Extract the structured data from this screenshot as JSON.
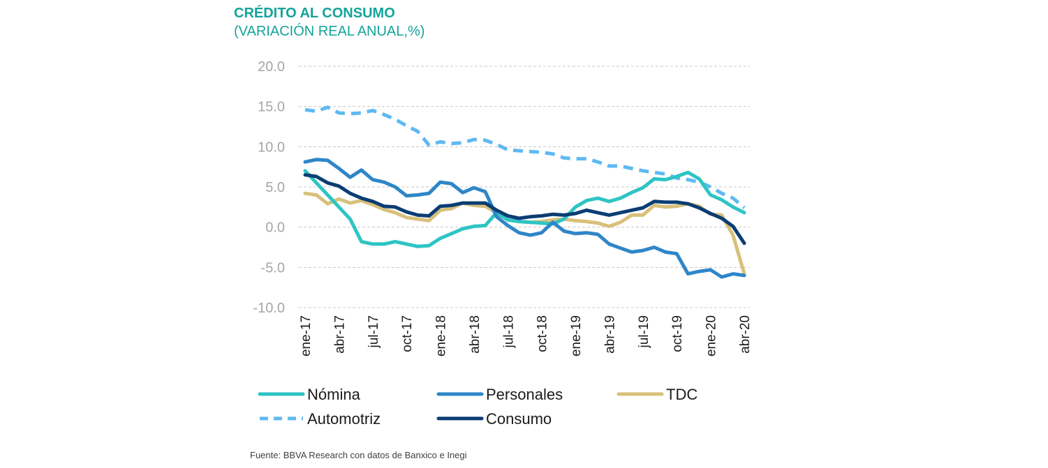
{
  "chart_data": {
    "type": "line",
    "title": "CRÉDITO AL CONSUMO",
    "subtitle": "(VARIACIÓN REAL ANUAL,%)",
    "source": "Fuente: BBVA Research con datos de Banxico e Inegi",
    "ylim": [
      -10,
      20
    ],
    "yticks": [
      20,
      15,
      10,
      5,
      0,
      -5,
      -10
    ],
    "ytick_labels": [
      "20.0",
      "15.0",
      "10.0",
      "5.0",
      "0.0",
      "-5.0",
      "-10.0"
    ],
    "grid": true,
    "legend_position": "bottom",
    "x": [
      "ene-17",
      "feb-17",
      "mar-17",
      "abr-17",
      "may-17",
      "jun-17",
      "jul-17",
      "ago-17",
      "sep-17",
      "oct-17",
      "nov-17",
      "dic-17",
      "ene-18",
      "feb-18",
      "mar-18",
      "abr-18",
      "may-18",
      "jun-18",
      "jul-18",
      "ago-18",
      "sep-18",
      "oct-18",
      "nov-18",
      "dic-18",
      "ene-19",
      "feb-19",
      "mar-19",
      "abr-19",
      "may-19",
      "jun-19",
      "jul-19",
      "ago-19",
      "sep-19",
      "oct-19",
      "nov-19",
      "dic-19",
      "ene-20",
      "feb-20",
      "mar-20",
      "abr-20"
    ],
    "xtick_labels": [
      {
        "index": 0,
        "label": "ene-17"
      },
      {
        "index": 3,
        "label": "abr-17"
      },
      {
        "index": 6,
        "label": "jul-17"
      },
      {
        "index": 9,
        "label": "oct-17"
      },
      {
        "index": 12,
        "label": "ene-18"
      },
      {
        "index": 15,
        "label": "abr-18"
      },
      {
        "index": 18,
        "label": "jul-18"
      },
      {
        "index": 21,
        "label": "oct-18"
      },
      {
        "index": 24,
        "label": "ene-19"
      },
      {
        "index": 27,
        "label": "abr-19"
      },
      {
        "index": 30,
        "label": "jul-19"
      },
      {
        "index": 33,
        "label": "oct-19"
      },
      {
        "index": 36,
        "label": "ene-20"
      },
      {
        "index": 39,
        "label": "abr-20"
      }
    ],
    "series": [
      {
        "name": "Nómina",
        "color": "#2ec4c4",
        "dashed": false,
        "values": [
          7.0,
          5.5,
          4.0,
          2.5,
          1.0,
          -1.8,
          -2.1,
          -2.1,
          -1.8,
          -2.1,
          -2.4,
          -2.3,
          -1.4,
          -0.8,
          -0.2,
          0.1,
          0.2,
          1.8,
          0.9,
          0.7,
          0.6,
          0.5,
          0.4,
          1.0,
          2.5,
          3.3,
          3.6,
          3.2,
          3.6,
          4.3,
          4.9,
          6.0,
          5.9,
          6.3,
          6.8,
          6.0,
          4.0,
          3.4,
          2.5,
          1.8
        ]
      },
      {
        "name": "Personales",
        "color": "#2e86c8",
        "dashed": false,
        "values": [
          8.1,
          8.4,
          8.3,
          7.3,
          6.2,
          7.1,
          5.9,
          5.6,
          5.0,
          3.9,
          4.0,
          4.2,
          5.6,
          5.4,
          4.3,
          4.9,
          4.4,
          1.3,
          0.2,
          -0.7,
          -1.0,
          -0.7,
          0.6,
          -0.5,
          -0.8,
          -0.7,
          -0.9,
          -2.1,
          -2.6,
          -3.1,
          -2.9,
          -2.5,
          -3.1,
          -3.3,
          -5.8,
          -5.5,
          -5.3,
          -6.2,
          -5.8,
          -6.0
        ]
      },
      {
        "name": "TDC",
        "color": "#d8c07a",
        "dashed": false,
        "values": [
          4.2,
          4.0,
          2.9,
          3.5,
          3.0,
          3.3,
          2.8,
          2.2,
          1.8,
          1.2,
          1.0,
          0.8,
          2.1,
          2.3,
          3.0,
          2.7,
          2.6,
          1.8,
          0.9,
          0.7,
          0.6,
          0.7,
          0.9,
          1.0,
          0.8,
          0.7,
          0.5,
          0.1,
          0.6,
          1.5,
          1.5,
          2.7,
          2.5,
          2.6,
          2.9,
          2.6,
          1.6,
          1.5,
          -1.0,
          -5.8
        ]
      },
      {
        "name": "Automotriz",
        "color": "#5fb9f2",
        "dashed": true,
        "values": [
          14.6,
          14.4,
          14.9,
          14.2,
          14.1,
          14.2,
          14.5,
          14.0,
          13.4,
          12.6,
          11.9,
          10.2,
          10.6,
          10.4,
          10.5,
          10.9,
          10.8,
          10.3,
          9.6,
          9.5,
          9.4,
          9.3,
          9.1,
          8.6,
          8.5,
          8.5,
          8.1,
          7.6,
          7.6,
          7.3,
          7.0,
          6.8,
          6.6,
          6.1,
          5.9,
          5.6,
          5.0,
          4.2,
          3.6,
          2.4
        ]
      },
      {
        "name": "Consumo",
        "color": "#0b3d74",
        "dashed": false,
        "values": [
          6.5,
          6.3,
          5.5,
          5.1,
          4.2,
          3.6,
          3.2,
          2.6,
          2.5,
          1.9,
          1.5,
          1.4,
          2.6,
          2.7,
          3.0,
          3.0,
          3.0,
          2.1,
          1.4,
          1.1,
          1.3,
          1.4,
          1.6,
          1.5,
          1.7,
          2.1,
          1.8,
          1.5,
          1.8,
          2.1,
          2.4,
          3.2,
          3.1,
          3.1,
          2.9,
          2.4,
          1.7,
          1.1,
          0.1,
          -2.0
        ]
      }
    ]
  }
}
